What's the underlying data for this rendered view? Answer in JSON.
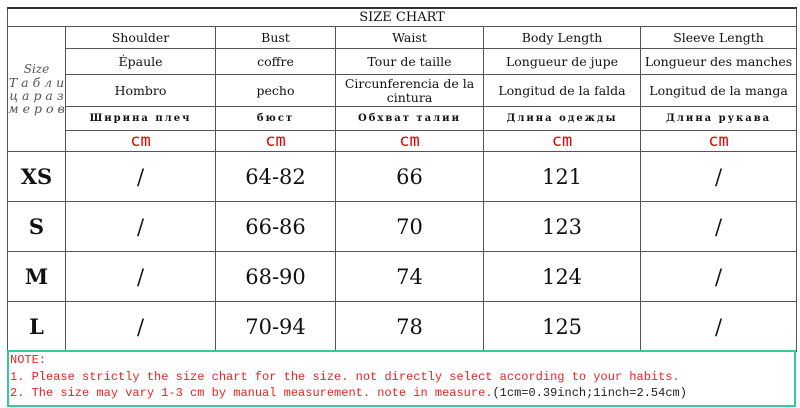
{
  "title": "SIZE CHART",
  "size_label": "Size",
  "size_label_ru": "Т а б л и ц а  р а з м е р о в",
  "columns": [
    {
      "en": "Shoulder",
      "fr": "Épaule",
      "es": "Hombro",
      "ru": "Ширина плеч",
      "unit": "cm"
    },
    {
      "en": "Bust",
      "fr": "coffre",
      "es": "pecho",
      "ru": "бюст",
      "unit": "cm"
    },
    {
      "en": "Waist",
      "fr": "Tour de taille",
      "es": "Circunferencia de la cintura",
      "ru": "Обхват талии",
      "unit": "cm"
    },
    {
      "en": "Body Length",
      "fr": "Longueur de jupe",
      "es": "Longitud de la falda",
      "ru": "Длина одежды",
      "unit": "cm"
    },
    {
      "en": "Sleeve Length",
      "fr": "Longueur des manches",
      "es": "Longitud de la manga",
      "ru": "Длина рукава",
      "unit": "cm"
    }
  ],
  "rows": [
    {
      "size": "XS",
      "values": [
        "/",
        "64-82",
        "66",
        "121",
        "/"
      ]
    },
    {
      "size": "S",
      "values": [
        "/",
        "66-86",
        "70",
        "123",
        "/"
      ]
    },
    {
      "size": "M",
      "values": [
        "/",
        "68-90",
        "74",
        "124",
        "/"
      ]
    },
    {
      "size": "L",
      "values": [
        "/",
        "70-94",
        "78",
        "125",
        "/"
      ]
    }
  ],
  "note": {
    "heading": "NOTE:",
    "line1": "1. Please strictly the size chart for the size. not directly select according to your habits.",
    "line2": "2. The size may vary 1-3 cm by manual measurement. note in measure.",
    "line2_conversion": "(1cm=0.39inch;1inch=2.54cm)"
  }
}
